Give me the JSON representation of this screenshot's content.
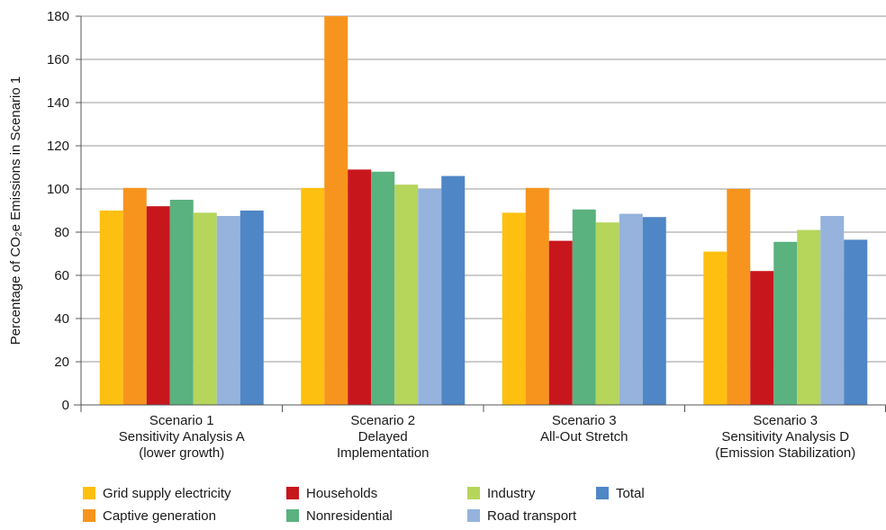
{
  "chart_data": {
    "type": "bar",
    "ylabel": "Percentage of CO₂e Emissions in Scenario 1",
    "ylim": [
      0,
      180
    ],
    "yticks": [
      0,
      20,
      40,
      60,
      80,
      100,
      120,
      140,
      160,
      180
    ],
    "grid": true,
    "legend_placement": "bottom",
    "categories": [
      [
        "Scenario 1",
        "Sensitivity Analysis A",
        "(lower growth)"
      ],
      [
        "Scenario 2",
        "Delayed",
        "Implementation"
      ],
      [
        "Scenario 3",
        "All-Out Stretch"
      ],
      [
        "Scenario 3",
        "Sensitivity Analysis D",
        "(Emission Stabilization)"
      ]
    ],
    "series": [
      {
        "name": "Grid supply electricity",
        "color": "#FEC010",
        "values": [
          90,
          100.5,
          89,
          71
        ]
      },
      {
        "name": "Captive generation",
        "color": "#F7941D",
        "values": [
          100.5,
          180,
          100.5,
          100
        ]
      },
      {
        "name": "Households",
        "color": "#C8161D",
        "values": [
          92,
          109,
          76,
          62
        ]
      },
      {
        "name": "Nonresidential",
        "color": "#5AB27E",
        "values": [
          95,
          108,
          90.5,
          75.5
        ]
      },
      {
        "name": "Industry",
        "color": "#B5D55B",
        "values": [
          89,
          102,
          84.5,
          81
        ]
      },
      {
        "name": "Road transport",
        "color": "#95B3DC",
        "values": [
          87.5,
          100,
          88.5,
          87.5
        ]
      },
      {
        "name": "Total",
        "color": "#4F86C6",
        "values": [
          90,
          106,
          87,
          76.5
        ]
      }
    ]
  }
}
